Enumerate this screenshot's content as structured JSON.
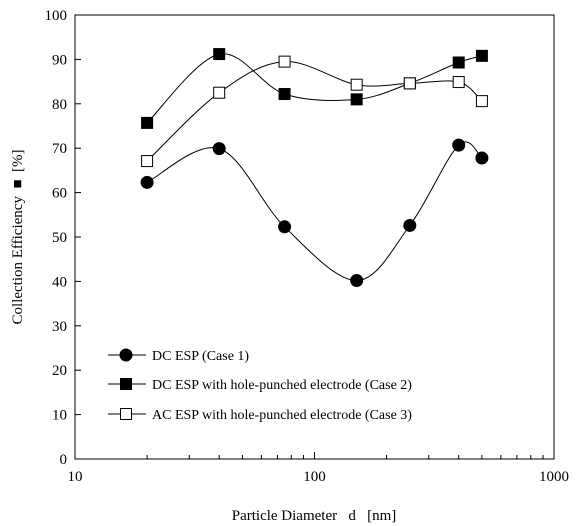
{
  "chart_data": {
    "type": "scatter",
    "x_scale": "log",
    "xlabel": "Particle Diameter   d   [nm]",
    "ylabel": "Collection Efficiency  ■  [%]",
    "xlim": [
      10,
      1000
    ],
    "ylim": [
      0,
      100
    ],
    "x_ticks": [
      10,
      100,
      1000
    ],
    "x_tick_labels": [
      "10",
      "100",
      "1000"
    ],
    "y_ticks": [
      0,
      10,
      20,
      30,
      40,
      50,
      60,
      70,
      80,
      90,
      100
    ],
    "y_tick_labels": [
      "0",
      "10",
      "20",
      "30",
      "40",
      "50",
      "60",
      "70",
      "80",
      "90",
      "100"
    ],
    "grid": false,
    "legend_position": "bottom-left",
    "lines": "smoothed",
    "series": [
      {
        "name": "DC ESP (Case 1)",
        "marker": "filled-circle",
        "color": "#000000",
        "x": [
          20,
          40,
          75,
          150,
          250,
          400,
          500
        ],
        "y": [
          62.3,
          69.9,
          52.3,
          40.2,
          52.6,
          70.7,
          67.8
        ]
      },
      {
        "name": "DC ESP with hole-punched electrode (Case 2)",
        "marker": "filled-square",
        "color": "#000000",
        "x": [
          20,
          40,
          75,
          150,
          250,
          400,
          500
        ],
        "y": [
          75.7,
          91.2,
          82.2,
          81.0,
          84.6,
          89.3,
          90.8
        ]
      },
      {
        "name": "AC ESP with hole-punched electrode (Case 3)",
        "marker": "open-square",
        "color": "#000000",
        "x": [
          20,
          40,
          75,
          150,
          250,
          400,
          500
        ],
        "y": [
          67.1,
          82.5,
          89.5,
          84.3,
          84.6,
          84.9,
          80.6
        ]
      }
    ]
  }
}
